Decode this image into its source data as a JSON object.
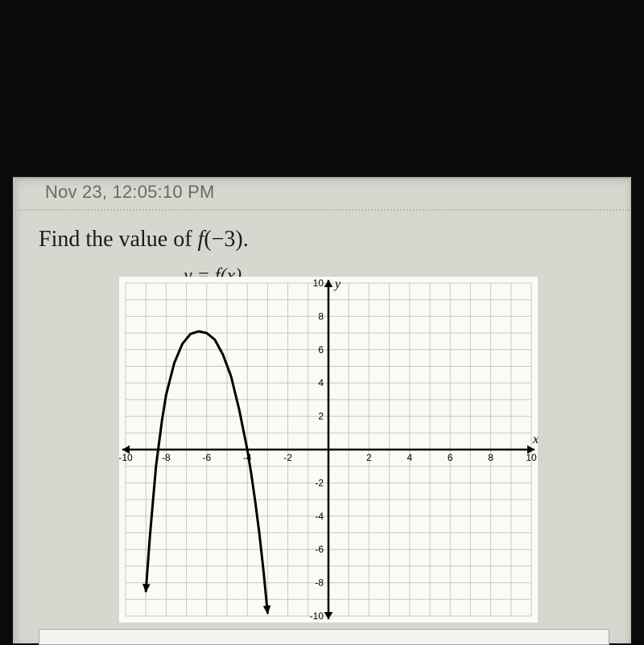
{
  "timestamp": "Nov 23, 12:05:10 PM",
  "prompt_prefix": "Find the value of ",
  "prompt_func": "f",
  "prompt_arg": "(−3)",
  "prompt_suffix": ".",
  "equation_label": "y = f(x)",
  "chart": {
    "type": "line",
    "xlim": [
      -10,
      10
    ],
    "ylim": [
      -10,
      10
    ],
    "xtick_step": 2,
    "ytick_step": 2,
    "x_ticks": [
      -10,
      -8,
      -6,
      -4,
      -2,
      2,
      4,
      6,
      8,
      10
    ],
    "y_ticks": [
      -10,
      -8,
      -6,
      -4,
      -2,
      2,
      4,
      6,
      8,
      10
    ],
    "x_axis_label": "x",
    "y_axis_label": "y",
    "minor_step": 1,
    "grid_color": "#c8c8c2",
    "axis_color": "#000000",
    "background_color": "#fafaf7",
    "curve_color": "#000000",
    "curve_width": 3,
    "tick_label_fontsize": 12,
    "axis_label_fontsize": 16,
    "arrow_size": 9,
    "curve_points": [
      [
        -9.0,
        -8.5
      ],
      [
        -8.8,
        -5.2
      ],
      [
        -8.5,
        -1.0
      ],
      [
        -8.2,
        1.8
      ],
      [
        -8.0,
        3.3
      ],
      [
        -7.6,
        5.2
      ],
      [
        -7.2,
        6.35
      ],
      [
        -6.8,
        6.95
      ],
      [
        -6.4,
        7.1
      ],
      [
        -6.0,
        7.0
      ],
      [
        -5.6,
        6.6
      ],
      [
        -5.2,
        5.7
      ],
      [
        -4.8,
        4.4
      ],
      [
        -4.4,
        2.4
      ],
      [
        -4.2,
        1.2
      ],
      [
        -4.0,
        0.0
      ],
      [
        -3.8,
        -1.5
      ],
      [
        -3.6,
        -3.2
      ],
      [
        -3.4,
        -5.1
      ],
      [
        -3.2,
        -7.3
      ],
      [
        -3.0,
        -9.8
      ]
    ]
  }
}
